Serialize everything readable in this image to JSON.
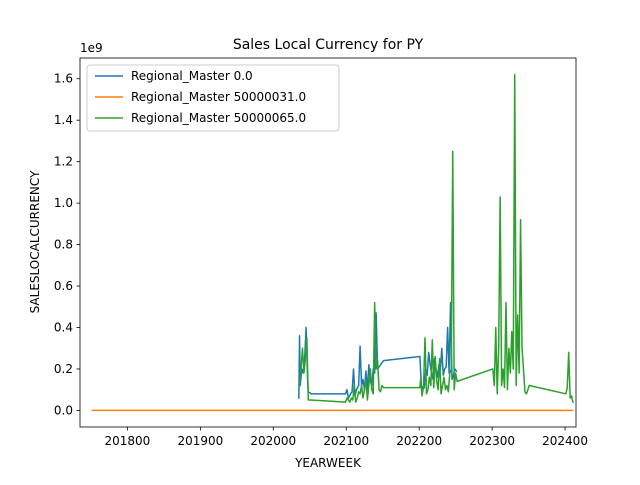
{
  "chart_data": {
    "type": "line",
    "title": "Sales Local Currency for PY",
    "xlabel": "YEARWEEK",
    "ylabel": "SALESLOCALCURRENCY",
    "y_offset_text": "1e9",
    "xlim": [
      201735,
      202415
    ],
    "ylim": [
      -0.08,
      1.7
    ],
    "x_ticks": [
      201800,
      201900,
      202000,
      202100,
      202200,
      202300,
      202400
    ],
    "x_tick_labels": [
      "201800",
      "201900",
      "202000",
      "202100",
      "202200",
      "202300",
      "202400"
    ],
    "y_ticks": [
      0.0,
      0.2,
      0.4,
      0.6,
      0.8,
      1.0,
      1.2,
      1.4,
      1.6
    ],
    "y_tick_labels": [
      "0.0",
      "0.2",
      "0.4",
      "0.6",
      "0.8",
      "1.0",
      "1.2",
      "1.4",
      "1.6"
    ],
    "grid": false,
    "legend_position": "top-left",
    "series": [
      {
        "name": "Regional_Master 0.0",
        "color": "#1f77b4",
        "x": [
          202035,
          202036,
          202037,
          202039,
          202041,
          202043,
          202045,
          202047,
          202048,
          202050,
          202052,
          202099,
          202101,
          202103,
          202106,
          202108,
          202110,
          202112,
          202114,
          202117,
          202119,
          202121,
          202123,
          202125,
          202127,
          202129,
          202131,
          202133,
          202135,
          202137,
          202139,
          202141,
          202143,
          202145,
          202147,
          202149,
          202151,
          202201,
          202203,
          202205,
          202207,
          202209,
          202211,
          202213,
          202215,
          202217,
          202219,
          202221,
          202223,
          202225,
          202227,
          202229,
          202231,
          202233,
          202235,
          202237,
          202239,
          202241,
          202243,
          202245,
          202247,
          202249,
          202251
        ],
        "values": [
          0.06,
          0.36,
          0.12,
          0.2,
          0.18,
          0.25,
          0.4,
          0.15,
          0.09,
          0.085,
          0.08,
          0.08,
          0.1,
          0.06,
          0.08,
          0.09,
          0.2,
          0.07,
          0.1,
          0.12,
          0.31,
          0.12,
          0.15,
          0.1,
          0.19,
          0.1,
          0.22,
          0.14,
          0.12,
          0.2,
          0.18,
          0.47,
          0.2,
          0.21,
          0.22,
          0.23,
          0.24,
          0.26,
          0.12,
          0.1,
          0.11,
          0.2,
          0.17,
          0.28,
          0.22,
          0.18,
          0.15,
          0.25,
          0.2,
          0.16,
          0.22,
          0.19,
          0.3,
          0.17,
          0.2,
          0.21,
          0.4,
          0.18,
          0.52,
          0.15,
          0.17,
          0.2,
          0.19
        ]
      },
      {
        "name": "Regional_Master 50000031.0",
        "color": "#ff7f0e",
        "x": [
          201752,
          202410
        ],
        "values": [
          0.0,
          0.0
        ]
      },
      {
        "name": "Regional_Master 50000065.0",
        "color": "#2ca02c",
        "x": [
          202036,
          202038,
          202040,
          202042,
          202044,
          202046,
          202048,
          202050,
          202052,
          202099,
          202101,
          202103,
          202105,
          202107,
          202109,
          202111,
          202113,
          202115,
          202117,
          202119,
          202121,
          202123,
          202125,
          202127,
          202129,
          202131,
          202133,
          202135,
          202137,
          202139,
          202141,
          202143,
          202145,
          202147,
          202149,
          202151,
          202201,
          202202,
          202204,
          202206,
          202208,
          202210,
          202212,
          202214,
          202216,
          202218,
          202220,
          202222,
          202224,
          202226,
          202228,
          202230,
          202232,
          202234,
          202236,
          202238,
          202240,
          202242,
          202244,
          202246,
          202248,
          202250,
          202252,
          202301,
          202303,
          202305,
          202307,
          202309,
          202311,
          202313,
          202315,
          202317,
          202319,
          202321,
          202323,
          202325,
          202327,
          202329,
          202331,
          202333,
          202335,
          202337,
          202339,
          202341,
          202343,
          202345,
          202347,
          202349,
          202351,
          202401,
          202403,
          202405,
          202407,
          202409,
          202410,
          202411
        ],
        "values": [
          0.12,
          0.2,
          0.3,
          0.18,
          0.25,
          0.35,
          0.05,
          0.05,
          0.05,
          0.04,
          0.06,
          0.05,
          0.04,
          0.06,
          0.05,
          0.12,
          0.04,
          0.06,
          0.09,
          0.08,
          0.12,
          0.06,
          0.1,
          0.15,
          0.05,
          0.12,
          0.2,
          0.1,
          0.08,
          0.52,
          0.2,
          0.24,
          0.1,
          0.09,
          0.12,
          0.11,
          0.11,
          0.15,
          0.07,
          0.12,
          0.35,
          0.08,
          0.1,
          0.16,
          0.12,
          0.34,
          0.11,
          0.26,
          0.14,
          0.1,
          0.25,
          0.08,
          0.12,
          0.16,
          0.1,
          0.12,
          0.09,
          0.18,
          0.2,
          1.25,
          0.1,
          0.18,
          0.14,
          0.2,
          0.12,
          0.4,
          0.08,
          0.3,
          1.03,
          0.12,
          0.2,
          0.11,
          0.52,
          0.1,
          0.3,
          0.18,
          0.38,
          0.2,
          1.62,
          0.12,
          0.46,
          0.18,
          0.92,
          0.3,
          0.2,
          0.09,
          0.08,
          0.1,
          0.12,
          0.08,
          0.11,
          0.28,
          0.06,
          0.07,
          0.05,
          0.04
        ]
      }
    ]
  }
}
